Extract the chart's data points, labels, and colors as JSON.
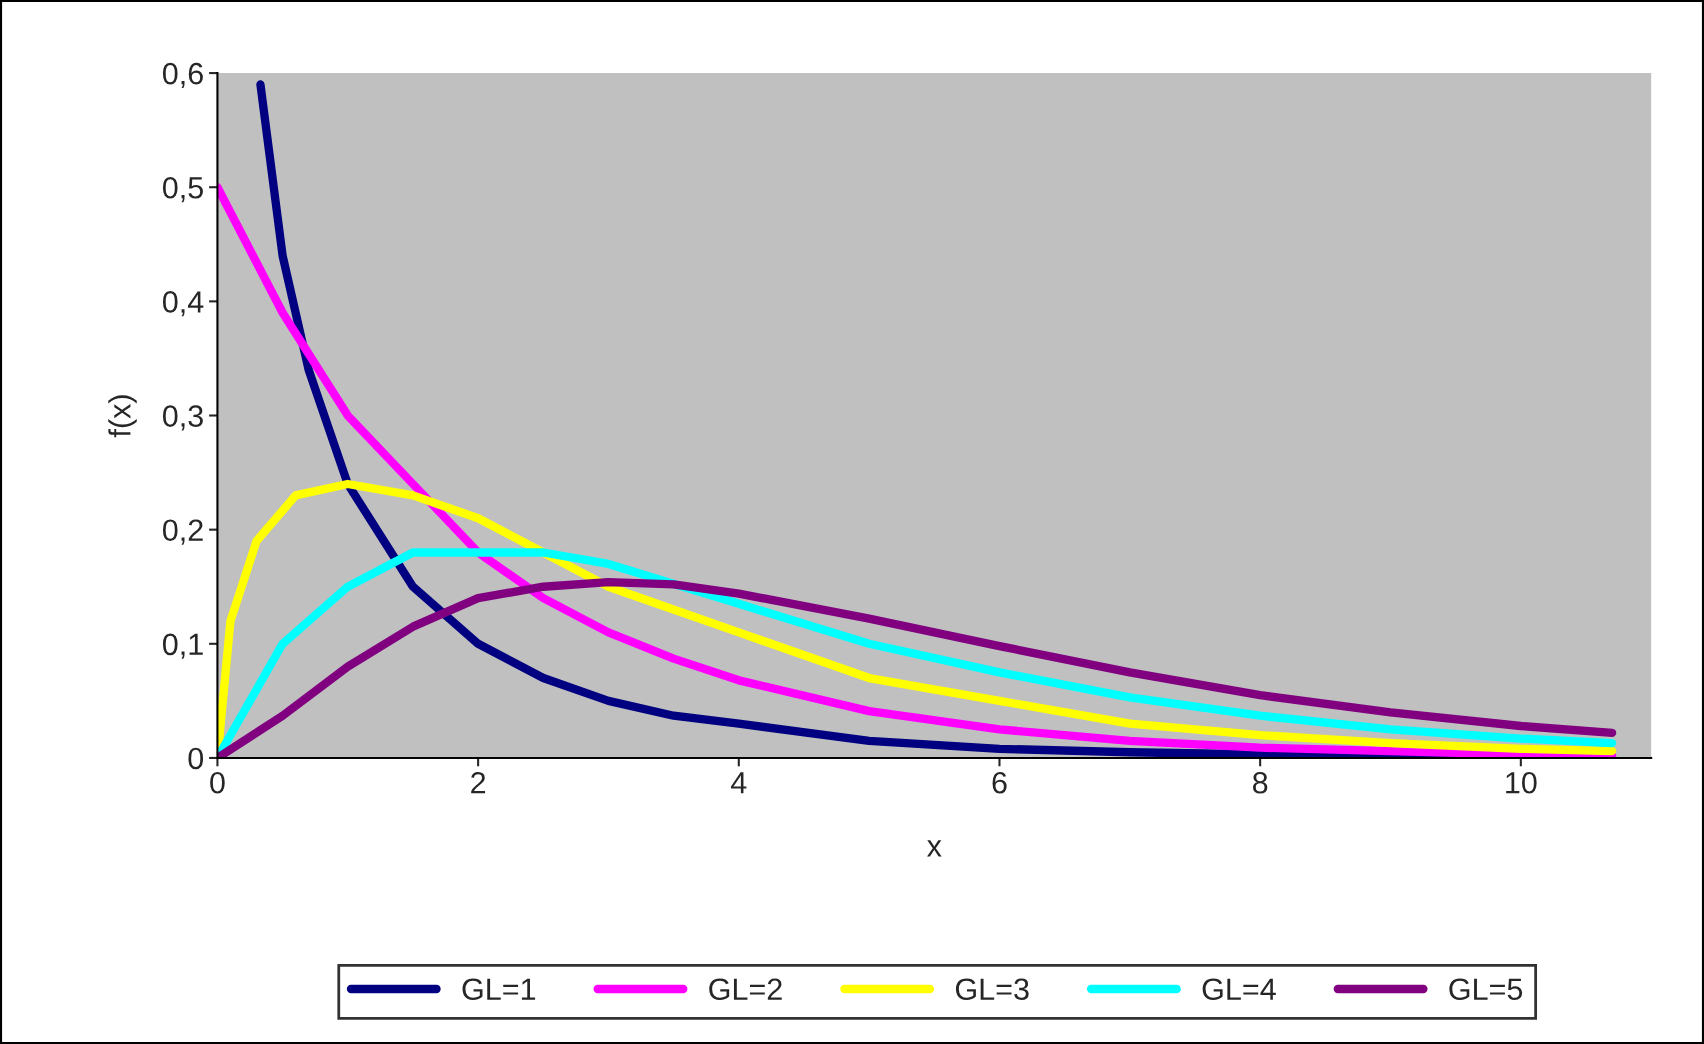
{
  "chart_data": {
    "type": "line",
    "xlabel": "x",
    "ylabel": "f(x)",
    "xlim": [
      0,
      11
    ],
    "ylim": [
      0,
      0.6
    ],
    "xticks": [
      0,
      2,
      4,
      6,
      8,
      10
    ],
    "yticks": [
      0,
      {
        "value": 0.1,
        "label": "0,1"
      },
      {
        "value": 0.2,
        "label": "0,2"
      },
      {
        "value": 0.3,
        "label": "0,3"
      },
      {
        "value": 0.4,
        "label": "0,4"
      },
      {
        "value": 0.5,
        "label": "0,5"
      },
      {
        "value": 0.6,
        "label": "0,6"
      }
    ],
    "grid": false,
    "legend": "bottom",
    "marker": "none",
    "line_style": "solid",
    "series": [
      {
        "name": "GL=1",
        "color": "#000080",
        "x": [
          0.33,
          0.5,
          0.7,
          1,
          1.5,
          2,
          2.5,
          3,
          3.5,
          4,
          5,
          6,
          7,
          8,
          9,
          10
        ],
        "values": [
          0.59,
          0.44,
          0.34,
          0.24,
          0.15,
          0.1,
          0.07,
          0.05,
          0.037,
          0.03,
          0.015,
          0.008,
          0.005,
          0.003,
          0.002,
          0.001
        ]
      },
      {
        "name": "GL=2",
        "color": "#ff00ff",
        "x": [
          0,
          0.5,
          1,
          1.5,
          2,
          2.5,
          3,
          3.5,
          4,
          5,
          6,
          7,
          8,
          9,
          10,
          10.7
        ],
        "values": [
          0.5,
          0.39,
          0.3,
          0.24,
          0.18,
          0.14,
          0.11,
          0.087,
          0.068,
          0.041,
          0.025,
          0.015,
          0.009,
          0.006,
          0.003,
          0.002
        ]
      },
      {
        "name": "GL=3",
        "color": "#ffff00",
        "x": [
          0,
          0.1,
          0.3,
          0.6,
          1,
          1.5,
          2,
          2.5,
          3,
          4,
          5,
          6,
          7,
          8,
          9,
          10,
          10.7
        ],
        "values": [
          0,
          0.12,
          0.19,
          0.23,
          0.24,
          0.23,
          0.21,
          0.18,
          0.15,
          0.11,
          0.07,
          0.05,
          0.03,
          0.02,
          0.013,
          0.008,
          0.006
        ]
      },
      {
        "name": "GL=4",
        "color": "#00ffff",
        "x": [
          0,
          0.5,
          1,
          1.5,
          2,
          2.5,
          3,
          4,
          5,
          6,
          7,
          8,
          9,
          10,
          10.7
        ],
        "values": [
          0,
          0.1,
          0.15,
          0.18,
          0.18,
          0.18,
          0.17,
          0.135,
          0.1,
          0.075,
          0.053,
          0.037,
          0.025,
          0.017,
          0.013
        ]
      },
      {
        "name": "GL=5",
        "color": "#800080",
        "x": [
          0,
          0.5,
          1,
          1.5,
          2,
          2.5,
          3,
          3.5,
          4,
          5,
          6,
          7,
          8,
          9,
          10,
          10.7
        ],
        "values": [
          0,
          0.037,
          0.08,
          0.115,
          0.14,
          0.15,
          0.154,
          0.152,
          0.144,
          0.122,
          0.098,
          0.075,
          0.055,
          0.04,
          0.028,
          0.022
        ]
      }
    ]
  }
}
